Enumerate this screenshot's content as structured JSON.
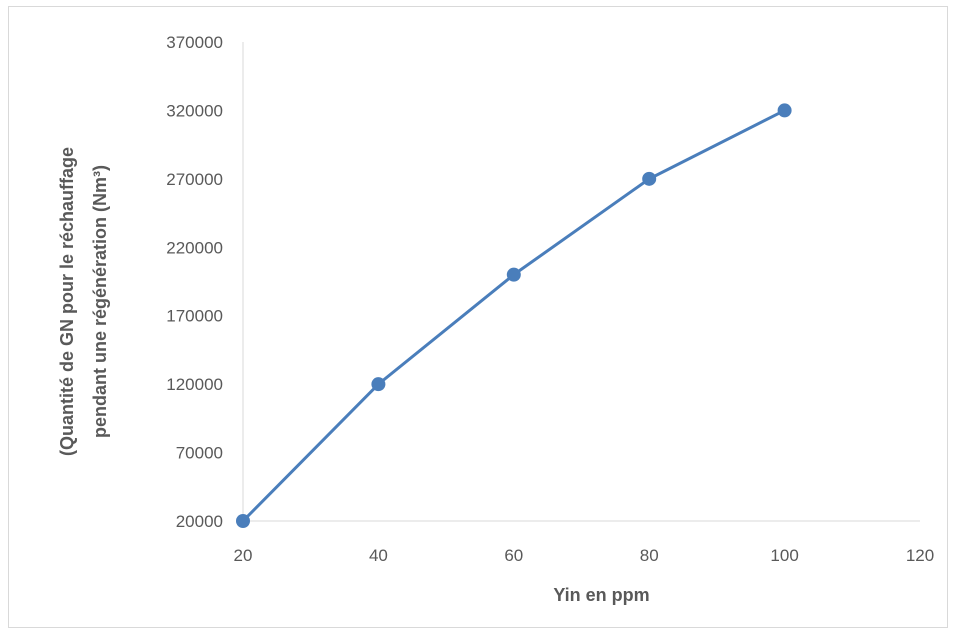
{
  "chart_data": {
    "type": "line",
    "title": "",
    "xlabel": "Yin en ppm",
    "ylabel_lines": [
      "(Quantité de GN pour le réchauffage",
      "pendant une régénération   (Nm³)"
    ],
    "x": [
      20,
      40,
      60,
      80,
      100
    ],
    "series": [
      {
        "name": "",
        "values": [
          20000,
          120000,
          200000,
          270000,
          320000
        ]
      }
    ],
    "xlim": [
      20,
      120
    ],
    "ylim": [
      20000,
      370000
    ],
    "x_ticks": [
      "20",
      "40",
      "60",
      "80",
      "100",
      "120"
    ],
    "y_ticks": [
      "20000",
      "70000",
      "120000",
      "170000",
      "220000",
      "270000",
      "320000",
      "370000"
    ],
    "grid": false,
    "legend": "none",
    "colors": {
      "series": "#4a7ebb",
      "axis": "#d9d9d9",
      "text": "#595959"
    }
  }
}
